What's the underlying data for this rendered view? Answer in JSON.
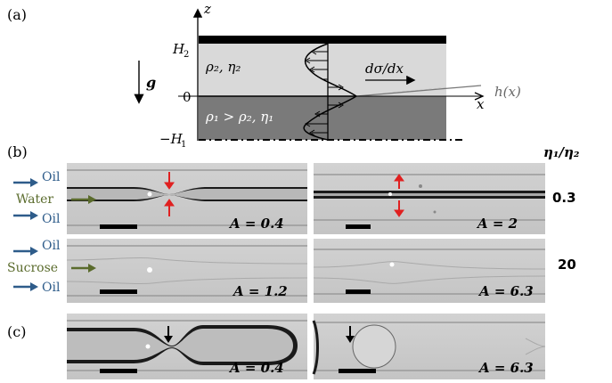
{
  "panels": {
    "a": "(a)",
    "b": "(b)",
    "c": "(c)"
  },
  "schematic": {
    "z_axis": "z",
    "x_axis": "x",
    "H2": "H",
    "H2_sub": "2",
    "zero": "0",
    "minus_H1": "−H",
    "H1_sub": "1",
    "g": "g",
    "upper_fluid": "ρ₂, η₂",
    "lower_fluid": "ρ₁ > ρ₂, η₁",
    "gradient": "dσ/dx",
    "interface": "h(x)"
  },
  "labels": {
    "ratio_header": "η₁/η₂",
    "oil": "Oil",
    "water": "Water",
    "sucrose": "Sucrose"
  },
  "ratios": [
    "0.3",
    "20"
  ],
  "images": [
    {
      "A": "A = 0.4"
    },
    {
      "A": "A = 2"
    },
    {
      "A": "A = 1.2"
    },
    {
      "A": "A = 6.3"
    },
    {
      "A": "A = 0.4"
    },
    {
      "A": "A = 6.3"
    }
  ],
  "colors": {
    "oil_arrow": "#2e5c8a",
    "water_arrow": "#5a6b2c",
    "red_arrow": "#e02020",
    "upper_fluid_fill": "#d9d9d9",
    "lower_fluid_fill": "#7a7a7a",
    "micrograph_bg": "#cfcfcf"
  },
  "icons": [
    "gravity-arrow-icon",
    "flow-arrow-icon",
    "pinch-arrow-icon"
  ]
}
